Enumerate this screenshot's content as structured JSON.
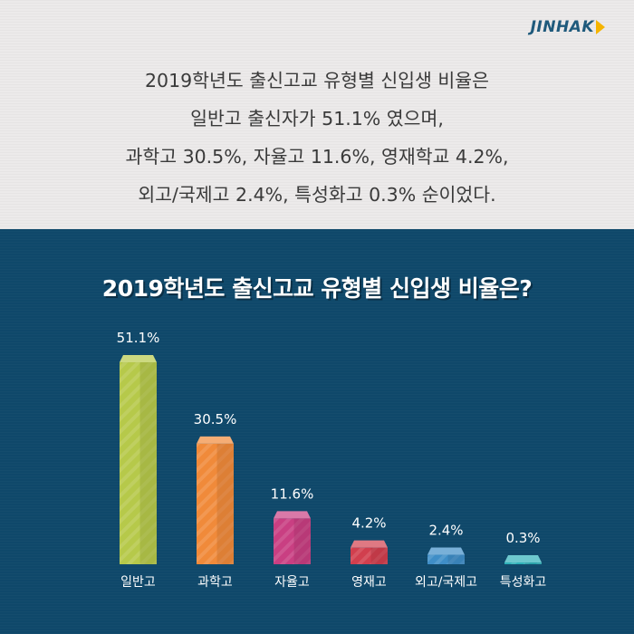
{
  "brand": {
    "logo_text": "JINHAK"
  },
  "summary": {
    "lines": [
      "2019학년도 출신고교 유형별 신입생 비율은",
      "일반고 출신자가 51.1% 였으며,",
      "과학고 30.5%, 자율고 11.6%, 영재학교 4.2%,",
      "외고/국제고 2.4%, 특성화고 0.3% 순이었다."
    ]
  },
  "chart_data": {
    "type": "bar",
    "title": "2019학년도 출신고교 유형별 신입생 비율은?",
    "categories": [
      "일반고",
      "과학고",
      "자율고",
      "영재고",
      "외고/국제고",
      "특성화고"
    ],
    "values": [
      51.1,
      30.5,
      11.6,
      4.2,
      2.4,
      0.3
    ],
    "value_labels": [
      "51.1%",
      "30.5%",
      "11.6%",
      "4.2%",
      "2.4%",
      "0.3%"
    ],
    "colors": [
      "#b6c94a",
      "#f08a3a",
      "#c93f82",
      "#d13f4e",
      "#3f8ec7",
      "#2fb1b9"
    ],
    "ylim": [
      0,
      55
    ],
    "grid": false,
    "legend": "none"
  },
  "colors": {
    "top_background": "#eceaea",
    "chart_background": "#0f486a",
    "logo": "#1f5a7c",
    "logo_accent": "#f5b400"
  }
}
